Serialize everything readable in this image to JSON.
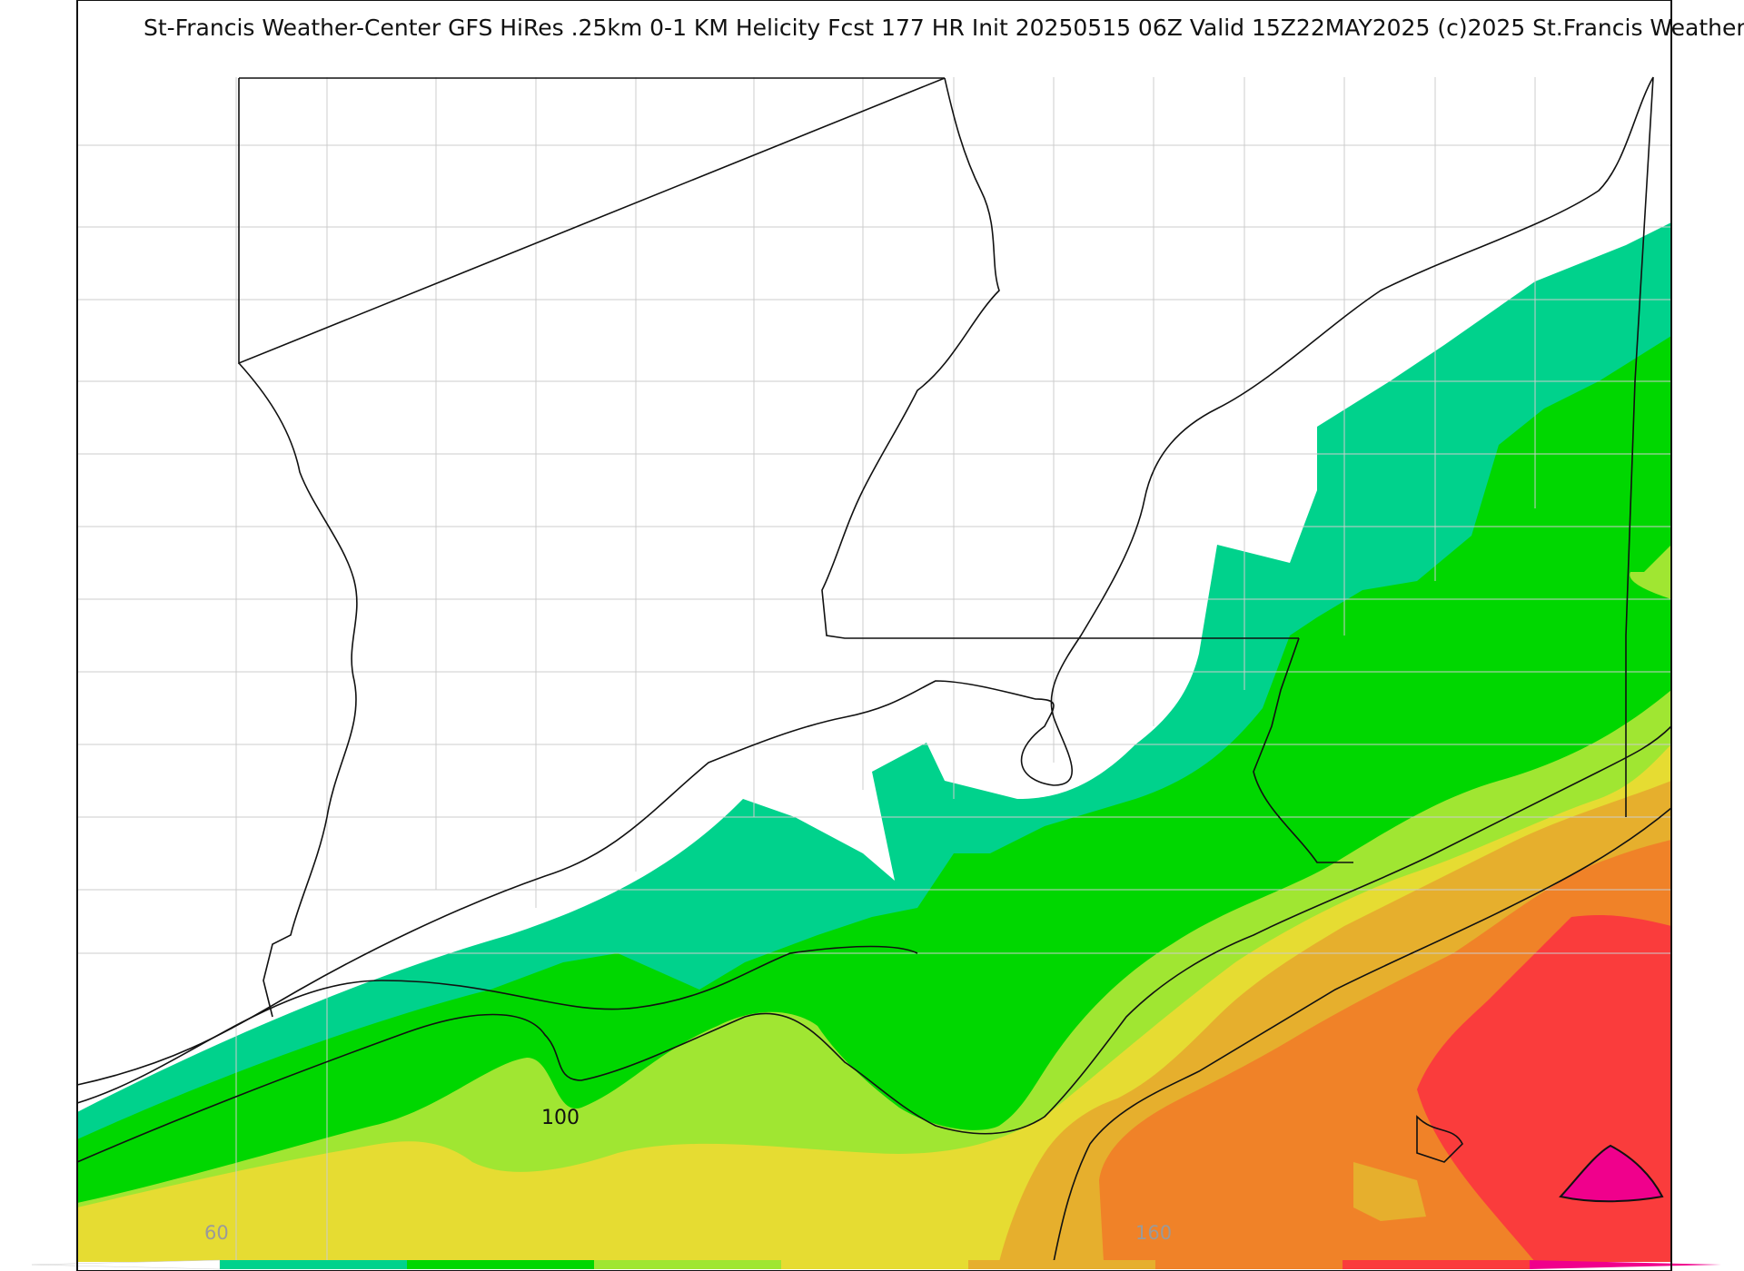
{
  "title": "St-Francis Weather-Center GFS HiRes .25km 0-1 KM Helicity Fcst 177 HR Init 20250515 06Z  Valid 15Z22MAY2025    (c)2025 St.Francis Weather",
  "contour_label": "100",
  "colorbar": {
    "tick_labels": [
      "60",
      "160"
    ],
    "colors": [
      "#ffffff",
      "#00d28c",
      "#00d700",
      "#a0e632",
      "#e6dc32",
      "#e6af2d",
      "#f08228",
      "#fa3c3c",
      "#f0008c"
    ]
  },
  "fill_colors": {
    "teal": "#00d28c",
    "green": "#00d700",
    "lime": "#a0e632",
    "yellow": "#e6dc32",
    "gold": "#e6af2d",
    "orange": "#f08228",
    "red": "#fa3c3c",
    "magenta": "#f0008c"
  }
}
